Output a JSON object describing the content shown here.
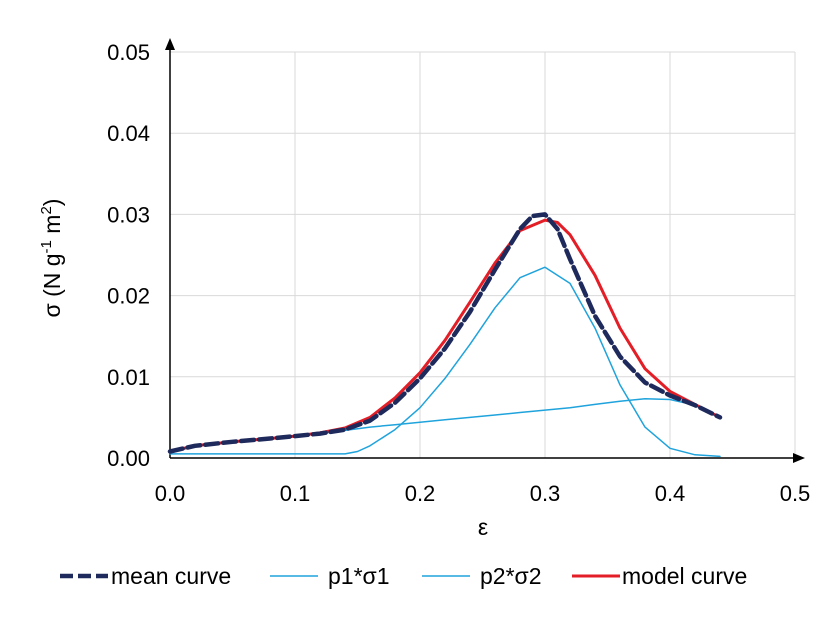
{
  "chart_data": {
    "type": "line",
    "xlabel": "ε",
    "ylabel": {
      "prefix": "σ (N g",
      "sup1": "-1",
      "mid": " m",
      "sup2": "2",
      "suffix": ")"
    },
    "xlim": [
      0,
      0.5
    ],
    "ylim": [
      0,
      0.05
    ],
    "x_ticks": [
      "0.0",
      "0.1",
      "0.2",
      "0.3",
      "0.4",
      "0.5"
    ],
    "y_ticks": [
      "0.00",
      "0.01",
      "0.02",
      "0.03",
      "0.04",
      "0.05"
    ],
    "grid": true,
    "legend_position": "bottom",
    "series": [
      {
        "name": "mean curve",
        "color": "#1f2a5c",
        "style": "dashed",
        "x": [
          0.0,
          0.02,
          0.05,
          0.08,
          0.1,
          0.12,
          0.14,
          0.16,
          0.18,
          0.2,
          0.22,
          0.24,
          0.26,
          0.28,
          0.29,
          0.3,
          0.31,
          0.32,
          0.34,
          0.36,
          0.38,
          0.4,
          0.42,
          0.44
        ],
        "y": [
          0.0008,
          0.0015,
          0.002,
          0.0024,
          0.0027,
          0.003,
          0.0035,
          0.0046,
          0.0068,
          0.0098,
          0.0135,
          0.018,
          0.0232,
          0.0282,
          0.0298,
          0.03,
          0.0282,
          0.0245,
          0.0175,
          0.0125,
          0.0093,
          0.0077,
          0.0065,
          0.005
        ]
      },
      {
        "name": "p1*σ1",
        "color": "#1fa3dc",
        "style": "solid",
        "x": [
          0.0,
          0.05,
          0.1,
          0.14,
          0.15,
          0.16,
          0.18,
          0.2,
          0.22,
          0.24,
          0.26,
          0.28,
          0.3,
          0.32,
          0.34,
          0.36,
          0.38,
          0.4,
          0.42,
          0.44
        ],
        "y": [
          0.0005,
          0.0005,
          0.0005,
          0.0005,
          0.0008,
          0.0015,
          0.0035,
          0.0062,
          0.0098,
          0.014,
          0.0185,
          0.0222,
          0.0235,
          0.0215,
          0.016,
          0.009,
          0.0038,
          0.0012,
          0.0004,
          0.0002
        ]
      },
      {
        "name": "p2*σ2",
        "color": "#1fa3dc",
        "style": "solid",
        "x": [
          0.0,
          0.02,
          0.05,
          0.08,
          0.1,
          0.12,
          0.14,
          0.16,
          0.18,
          0.2,
          0.22,
          0.24,
          0.26,
          0.28,
          0.3,
          0.32,
          0.34,
          0.36,
          0.38,
          0.4,
          0.42,
          0.44
        ],
        "y": [
          0.0008,
          0.0015,
          0.002,
          0.0024,
          0.0027,
          0.003,
          0.0034,
          0.0038,
          0.0041,
          0.0044,
          0.0047,
          0.005,
          0.0053,
          0.0056,
          0.0059,
          0.0062,
          0.0066,
          0.007,
          0.0073,
          0.0072,
          0.0065,
          0.005
        ]
      },
      {
        "name": "model curve",
        "color": "#e41e26",
        "style": "solid",
        "x": [
          0.0,
          0.02,
          0.05,
          0.08,
          0.1,
          0.12,
          0.14,
          0.16,
          0.18,
          0.2,
          0.22,
          0.24,
          0.26,
          0.28,
          0.3,
          0.31,
          0.32,
          0.34,
          0.36,
          0.38,
          0.4,
          0.42,
          0.44
        ],
        "y": [
          0.0008,
          0.0015,
          0.002,
          0.0024,
          0.0027,
          0.0031,
          0.0037,
          0.005,
          0.0074,
          0.0105,
          0.0145,
          0.0192,
          0.024,
          0.028,
          0.0293,
          0.029,
          0.0275,
          0.0225,
          0.016,
          0.011,
          0.0082,
          0.0066,
          0.005
        ]
      }
    ]
  }
}
